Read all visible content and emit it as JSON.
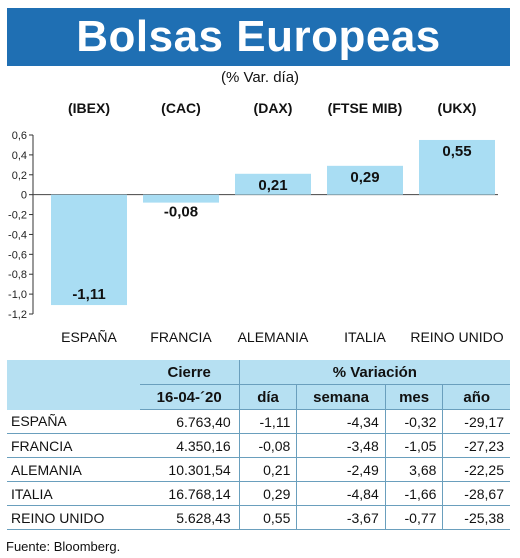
{
  "title": "Bolsas Europeas",
  "subtitle": "(% Var. día)",
  "source": "Fuente: Bloomberg.",
  "colors": {
    "title_bg": "#1f6fb3",
    "bar": "#a9ddf3",
    "header_bg": "#b6e0f2"
  },
  "chart_data": {
    "type": "bar",
    "title": "Bolsas Europeas",
    "subtitle": "(% Var. día)",
    "categories": [
      "ESPAÑA",
      "FRANCIA",
      "ALEMANIA",
      "ITALIA",
      "REINO UNIDO"
    ],
    "indices": [
      "(IBEX)",
      "(CAC)",
      "(DAX)",
      "(FTSE MIB)",
      "(UKX)"
    ],
    "values": [
      -1.11,
      -0.08,
      0.21,
      0.29,
      0.55
    ],
    "value_labels": [
      "-1,11",
      "-0,08",
      "0,21",
      "0,29",
      "0,55"
    ],
    "ylim": [
      -1.2,
      0.6
    ],
    "yticks": [
      0.6,
      0.4,
      0.2,
      0,
      -0.2,
      -0.4,
      -0.6,
      -0.8,
      -1.0,
      -1.2
    ],
    "ytick_labels": [
      "0,6",
      "0,4",
      "0,2",
      "0",
      "-0,2",
      "-0,4",
      "-0,6",
      "-0,8",
      "-1,0",
      "-1,2"
    ],
    "grid": false,
    "xlabel": "",
    "ylabel": ""
  },
  "table": {
    "header_group_1": "Cierre",
    "header_group_2": "% Variación",
    "date": "16-04-´20",
    "columns": [
      "día",
      "semana",
      "mes",
      "año"
    ],
    "rows": [
      {
        "country": "ESPAÑA",
        "cierre": "6.763,40",
        "dia": "-1,11",
        "semana": "-4,34",
        "mes": "-0,32",
        "ano": "-29,17"
      },
      {
        "country": "FRANCIA",
        "cierre": "4.350,16",
        "dia": "-0,08",
        "semana": "-3,48",
        "mes": "-1,05",
        "ano": "-27,23"
      },
      {
        "country": "ALEMANIA",
        "cierre": "10.301,54",
        "dia": "0,21",
        "semana": "-2,49",
        "mes": "3,68",
        "ano": "-22,25"
      },
      {
        "country": "ITALIA",
        "cierre": "16.768,14",
        "dia": "0,29",
        "semana": "-4,84",
        "mes": "-1,66",
        "ano": "-28,67"
      },
      {
        "country": "REINO UNIDO",
        "cierre": "5.628,43",
        "dia": "0,55",
        "semana": "-3,67",
        "mes": "-0,77",
        "ano": "-25,38"
      }
    ]
  }
}
